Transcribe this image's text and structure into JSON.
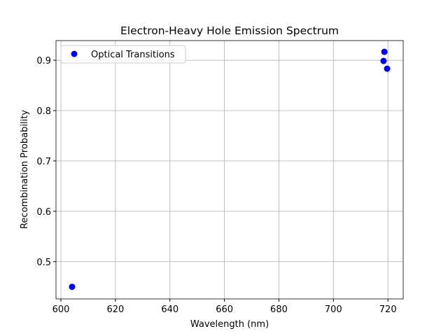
{
  "chart_data": {
    "type": "scatter",
    "title": "Electron-Heavy Hole Emission Spectrum",
    "x_label": "Wavelength (nm)",
    "y_label": "Recombination Probability",
    "series": [
      {
        "name": "Optical Transitions",
        "color": "#0000ff",
        "x": [
          604.1,
          718.7,
          718.4,
          719.7
        ],
        "values": [
          0.45,
          0.9167,
          0.8986,
          0.8833
        ]
      }
    ],
    "xlim": [
      598.2,
      725.6
    ],
    "xticks": [
      600,
      620,
      640,
      660,
      680,
      700,
      720
    ],
    "ylim": [
      0.426,
      0.939
    ],
    "yticks": [
      0.5,
      0.6,
      0.7,
      0.8,
      0.9
    ],
    "grid": true,
    "legend": "upper-left"
  }
}
